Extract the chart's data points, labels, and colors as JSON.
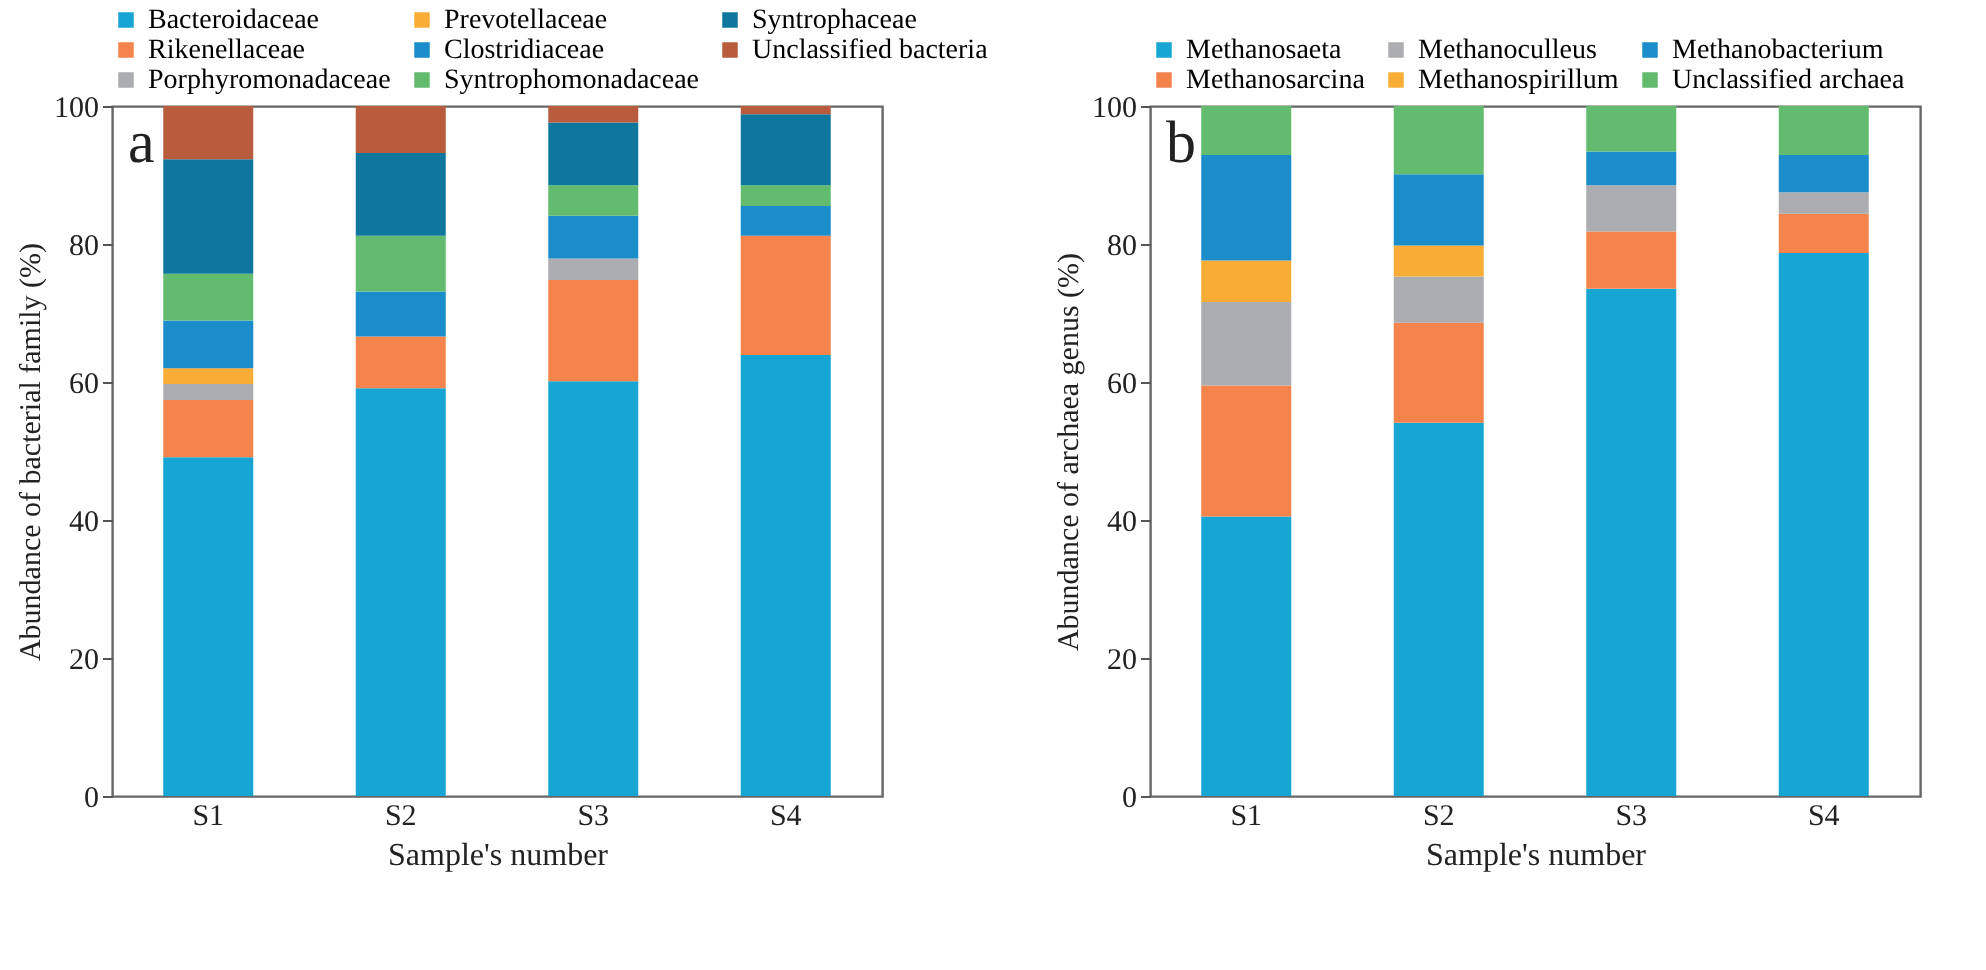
{
  "chart_data": [
    {
      "type": "bar",
      "stacked": true,
      "legend": "top",
      "grid": false,
      "xlabel": "Sample's number",
      "ylabel": "Abundance of bacterial family (%)",
      "annotations": [
        "a"
      ],
      "categories": [
        "S1",
        "S2",
        "S3",
        "S4"
      ],
      "ylim": [
        0,
        100
      ],
      "yticks": [
        0,
        20,
        40,
        60,
        80,
        100
      ],
      "series": [
        {
          "name": "Bacteroidaceae",
          "color": "#17a6d3",
          "values": [
            49.1,
            59.1,
            60.1,
            63.9
          ]
        },
        {
          "name": "Rikenellaceae",
          "color": "#f5844c",
          "values": [
            8.3,
            7.5,
            14.7,
            17.3
          ]
        },
        {
          "name": "Porphyromonadaceae",
          "color": "#acadb0",
          "values": [
            2.3,
            0,
            3.1,
            0
          ]
        },
        {
          "name": "Prevotellaceae",
          "color": "#f9ad37",
          "values": [
            2.3,
            0,
            0,
            0
          ]
        },
        {
          "name": "Clostridiaceae",
          "color": "#1a8dca",
          "values": [
            6.9,
            6.5,
            6.2,
            4.3
          ]
        },
        {
          "name": "Syntrophomonadaceae",
          "color": "#62bb6e",
          "values": [
            6.8,
            8.1,
            4.4,
            3.0
          ]
        },
        {
          "name": "Syntrophaceae",
          "color": "#0f779e",
          "values": [
            16.6,
            12.0,
            9.1,
            10.3
          ]
        },
        {
          "name": "Unclassified bacteria",
          "color": "#b85c3d",
          "values": [
            7.7,
            6.8,
            2.4,
            1.2
          ]
        }
      ]
    },
    {
      "type": "bar",
      "stacked": true,
      "legend": "top",
      "grid": false,
      "xlabel": "Sample's number",
      "ylabel": "Abundance of archaea genus (%)",
      "annotations": [
        "b"
      ],
      "categories": [
        "S1",
        "S2",
        "S3",
        "S4"
      ],
      "ylim": [
        0,
        100
      ],
      "yticks": [
        0,
        20,
        40,
        60,
        80,
        100
      ],
      "series": [
        {
          "name": "Methanosaeta",
          "color": "#17a6d3",
          "values": [
            40.5,
            54.1,
            73.5,
            78.7
          ]
        },
        {
          "name": "Methanosarcina",
          "color": "#f5844c",
          "values": [
            19.0,
            14.5,
            8.3,
            5.7
          ]
        },
        {
          "name": "Methanoculleus",
          "color": "#acadb0",
          "values": [
            12.1,
            6.7,
            6.7,
            3.1
          ]
        },
        {
          "name": "Methanospirillum",
          "color": "#f9ad37",
          "values": [
            6.0,
            4.5,
            0,
            0
          ]
        },
        {
          "name": "Methanobacterium",
          "color": "#1a8dca",
          "values": [
            15.3,
            10.3,
            4.9,
            5.4
          ]
        },
        {
          "name": "Unclassified archaea",
          "color": "#62bb6e",
          "values": [
            7.1,
            9.9,
            6.6,
            7.1
          ]
        }
      ]
    }
  ]
}
